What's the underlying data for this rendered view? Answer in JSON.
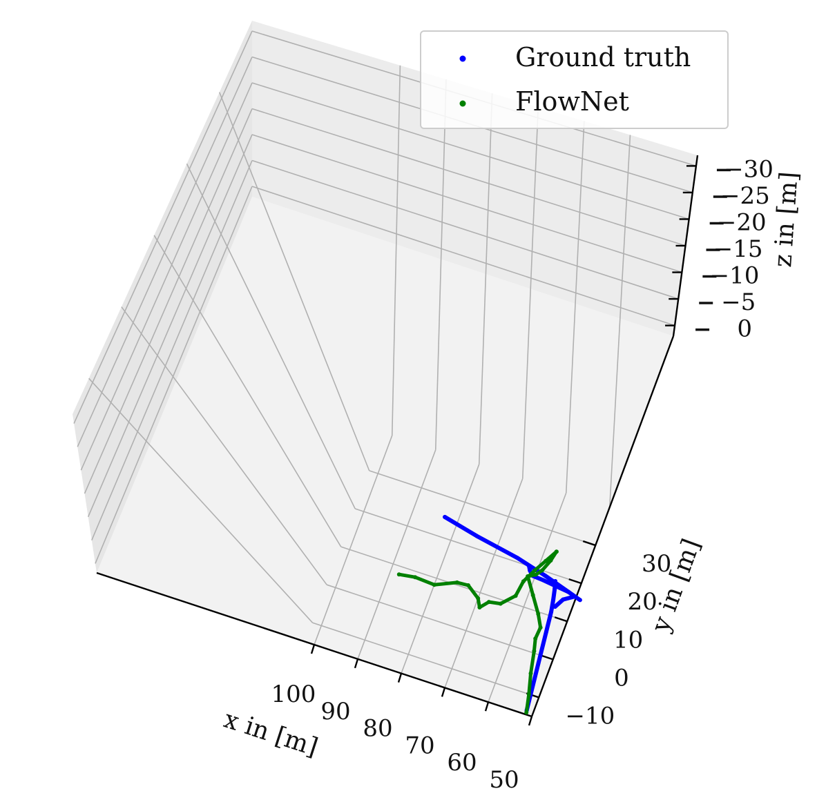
{
  "chart_data": {
    "type": "scatter",
    "projection": "3d",
    "xlabel": "x in [m]",
    "ylabel": "y in [m]",
    "zlabel": "z in [m]",
    "x_ticks": [
      100,
      90,
      80,
      70,
      60,
      50
    ],
    "y_ticks": [
      -10,
      0,
      10,
      20,
      30
    ],
    "z_ticks": [
      -30,
      -25,
      -20,
      -15,
      -10,
      -5,
      0
    ],
    "x_tick_labels": [
      "100",
      "90",
      "80",
      "70",
      "60",
      "50"
    ],
    "y_tick_labels": [
      "−10",
      "0",
      "10",
      "20",
      "30"
    ],
    "z_tick_labels": [
      "−30",
      "−25",
      "−20",
      "−15",
      "−10",
      "−5",
      "0"
    ],
    "grid": true,
    "legend_position": "top-right",
    "series": [
      {
        "name": "Ground truth",
        "color": "#0000ff",
        "segments": [
          [
            [
              83,
              25
            ],
            [
              75,
              23
            ],
            [
              65,
              21
            ],
            [
              58,
              19
            ],
            [
              52,
              17
            ],
            [
              49,
              16
            ]
          ],
          [
            [
              62,
              20
            ],
            [
              61.5,
              19
            ],
            [
              60.5,
              18
            ],
            [
              58,
              17.8
            ],
            [
              55,
              17.4
            ],
            [
              52,
              17
            ]
          ],
          [
            [
              55.5,
              18.5
            ],
            [
              55,
              16.5
            ],
            [
              54.5,
              14
            ],
            [
              54,
              11
            ],
            [
              53.5,
              6
            ],
            [
              52.7,
              -2
            ],
            [
              51.5,
              -14
            ]
          ],
          [
            [
              50.5,
              16.3
            ],
            [
              52.5,
              14.8
            ],
            [
              53.6,
              12.5
            ]
          ]
        ]
      },
      {
        "name": "FlowNet",
        "color": "#008000",
        "segments": [
          [
            [
              88,
              8
            ],
            [
              84.5,
              8.6
            ],
            [
              80,
              8.3
            ],
            [
              75.5,
              10.6
            ],
            [
              73,
              10.8
            ],
            [
              70,
              8.5
            ],
            [
              69,
              6.5
            ],
            [
              67.5,
              8.5
            ],
            [
              65,
              9
            ],
            [
              62.5,
              12
            ],
            [
              62,
              16
            ],
            [
              60.5,
              19.5
            ],
            [
              59,
              22.5
            ],
            [
              57.5,
              25.5
            ]
          ],
          [
            [
              57.5,
              25.5
            ],
            [
              58,
              23
            ],
            [
              59,
              20
            ],
            [
              60,
              18.5
            ],
            [
              61.5,
              17.5
            ]
          ],
          [
            [
              61.5,
              17.5
            ],
            [
              59,
              13.5
            ],
            [
              56.5,
              9.5
            ],
            [
              55,
              6.5
            ],
            [
              55.2,
              3.5
            ],
            [
              54.5,
              0.5
            ],
            [
              53.5,
              -5
            ],
            [
              52.3,
              -10
            ],
            [
              51.4,
              -14.5
            ]
          ]
        ]
      }
    ]
  }
}
